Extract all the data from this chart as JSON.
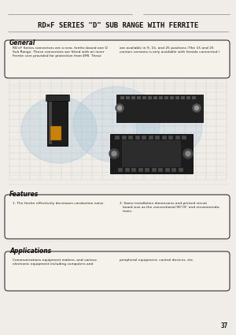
{
  "bg_color": "#f0ede8",
  "title": "RD×F SERIES \"D\" SUB RANGE WITH FERRITE",
  "title_fontsize": 6.8,
  "section_general": "General",
  "section_features": "Features",
  "section_applications": "Applications",
  "general_text_left": "RD×F Series connectors are a new, ferrite-based one D\nSub Range. These connectors are fitted with an inner\nFerrite core provided for protection from EMI. These",
  "general_text_right": "are available in 9, 15, and 25 positions (The 15 and 25\ncontact versions is only available with female connected.)",
  "features_text_left": "1. The ferrite effectively decreases conduction noise.",
  "features_text_right": "2. Same installation dimensions and printed circuit\n   board size as the conventional 90°/0° and recommenda-\n   tions.",
  "applications_text_left": "Communications equipment makers, and various\nelectronic equipment including computers and",
  "applications_text_right": "peripheral equipment, control devices, etc.",
  "page_number": "37",
  "line_color": "#888888",
  "box_edge_color": "#333333",
  "box_face_color": "#f5f2ec",
  "text_color": "#222222",
  "grid_color": "#bbbbbb",
  "watermark_color_1": "#a8c4d8",
  "watermark_color_2": "#b8cfe0",
  "connector_dark": "#1a1a1a",
  "connector_orange": "#c8820a"
}
